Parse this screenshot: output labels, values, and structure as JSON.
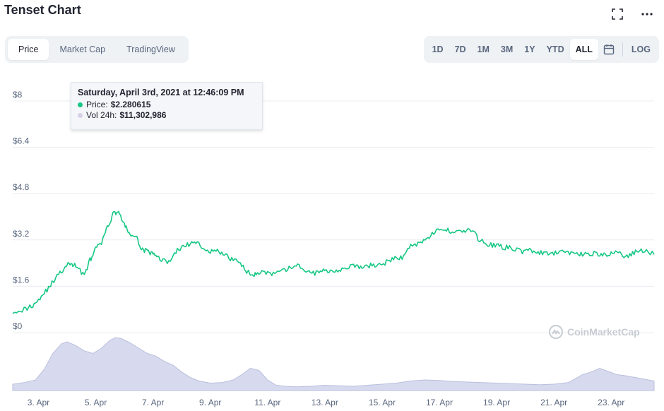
{
  "header": {
    "title": "Tenset Chart",
    "fullscreen_icon": "expand-icon",
    "more_icon": "more-dots-icon"
  },
  "metric_tabs": [
    {
      "label": "Price",
      "active": true
    },
    {
      "label": "Market Cap",
      "active": false
    },
    {
      "label": "TradingView",
      "active": false
    }
  ],
  "range_tabs": [
    {
      "label": "1D",
      "active": false
    },
    {
      "label": "7D",
      "active": false
    },
    {
      "label": "1M",
      "active": false
    },
    {
      "label": "3M",
      "active": false
    },
    {
      "label": "1Y",
      "active": false
    },
    {
      "label": "YTD",
      "active": false
    },
    {
      "label": "ALL",
      "active": true
    }
  ],
  "calendar_icon": "calendar-icon",
  "log_label": "LOG",
  "tooltip": {
    "title": "Saturday, April 3rd, 2021 at 12:46:09 PM",
    "price_label": "Price:",
    "price_value": "$2.280615",
    "vol_label": "Vol 24h:",
    "vol_value": "$11,302,986",
    "price_color": "#16c784",
    "vol_color": "#d9d0e6"
  },
  "watermark": "CoinMarketCap",
  "chart_data": {
    "type": "line",
    "price_color": "#16c784",
    "volume_color": "#c9cee8",
    "y_ticks": [
      "$8",
      "$6.4",
      "$4.8",
      "$3.2",
      "$1.6",
      "$0"
    ],
    "ylim": [
      0,
      8
    ],
    "x_ticks": [
      "3. Apr",
      "5. Apr",
      "7. Apr",
      "9. Apr",
      "11. Apr",
      "13. Apr",
      "15. Apr",
      "17. Apr",
      "19. Apr",
      "21. Apr",
      "23. Apr"
    ],
    "x_tick_days": [
      3,
      5,
      7,
      9,
      11,
      13,
      15,
      17,
      19,
      21,
      23
    ],
    "x_range_days": [
      2.1,
      24.5
    ],
    "grid": true,
    "series": [
      {
        "name": "Price",
        "x": [
          2.1,
          2.5,
          2.8,
          3.1,
          3.4,
          3.6,
          3.9,
          4.1,
          4.3,
          4.6,
          4.8,
          5.0,
          5.2,
          5.4,
          5.6,
          5.8,
          6.0,
          6.2,
          6.4,
          6.6,
          6.8,
          7.0,
          7.2,
          7.5,
          7.8,
          8.1,
          8.4,
          8.7,
          9.0,
          9.3,
          9.6,
          9.9,
          10.2,
          10.4,
          10.6,
          10.9,
          11.2,
          11.5,
          11.8,
          12.1,
          12.4,
          12.7,
          13.0,
          13.3,
          13.6,
          13.9,
          14.2,
          14.5,
          14.8,
          15.1,
          15.4,
          15.7,
          16.0,
          16.3,
          16.6,
          16.9,
          17.2,
          17.5,
          17.8,
          18.1,
          18.4,
          18.7,
          19.0,
          19.3,
          19.6,
          19.9,
          20.2,
          20.5,
          20.8,
          21.1,
          21.4,
          21.7,
          22.0,
          22.3,
          22.6,
          22.9,
          23.2,
          23.5,
          23.8,
          24.1,
          24.5
        ],
        "y": [
          0.75,
          0.8,
          0.95,
          1.25,
          1.6,
          1.9,
          2.2,
          2.4,
          2.3,
          2.0,
          2.5,
          2.9,
          3.1,
          3.6,
          4.1,
          4.2,
          3.7,
          3.4,
          3.3,
          2.9,
          2.8,
          2.7,
          2.6,
          2.4,
          2.8,
          3.0,
          3.1,
          3.0,
          2.8,
          2.8,
          2.6,
          2.5,
          2.2,
          2.0,
          2.05,
          2.1,
          2.0,
          2.1,
          2.25,
          2.3,
          2.1,
          2.05,
          2.15,
          2.15,
          2.2,
          2.3,
          2.25,
          2.3,
          2.35,
          2.4,
          2.55,
          2.6,
          3.0,
          3.1,
          3.3,
          3.5,
          3.55,
          3.5,
          3.5,
          3.55,
          3.2,
          3.05,
          3.0,
          2.95,
          2.9,
          2.8,
          2.85,
          2.75,
          2.7,
          2.75,
          2.8,
          2.75,
          2.7,
          2.75,
          2.7,
          2.65,
          2.85,
          2.6,
          2.75,
          2.85,
          2.7
        ]
      },
      {
        "name": "Vol 24h",
        "x": [
          2.1,
          2.5,
          2.9,
          3.2,
          3.5,
          3.8,
          4.0,
          4.3,
          4.6,
          4.9,
          5.2,
          5.5,
          5.7,
          5.9,
          6.2,
          6.5,
          6.8,
          7.1,
          7.4,
          7.7,
          8.0,
          8.3,
          8.6,
          9.0,
          9.4,
          9.8,
          10.1,
          10.4,
          10.7,
          11.0,
          11.3,
          11.6,
          12.0,
          12.5,
          13.0,
          13.5,
          14.0,
          14.5,
          15.0,
          15.5,
          16.0,
          16.5,
          17.0,
          17.5,
          18.0,
          18.5,
          19.0,
          19.5,
          20.0,
          20.5,
          21.0,
          21.5,
          22.0,
          22.3,
          22.6,
          22.9,
          23.2,
          23.5,
          23.8,
          24.1,
          24.5
        ],
        "y": [
          0.12,
          0.15,
          0.2,
          0.4,
          0.7,
          0.88,
          0.92,
          0.85,
          0.75,
          0.7,
          0.8,
          0.95,
          1.0,
          0.98,
          0.9,
          0.8,
          0.7,
          0.65,
          0.55,
          0.48,
          0.35,
          0.25,
          0.18,
          0.14,
          0.15,
          0.2,
          0.3,
          0.42,
          0.38,
          0.2,
          0.1,
          0.08,
          0.07,
          0.08,
          0.1,
          0.09,
          0.08,
          0.1,
          0.12,
          0.14,
          0.18,
          0.2,
          0.19,
          0.17,
          0.16,
          0.15,
          0.14,
          0.13,
          0.12,
          0.11,
          0.12,
          0.15,
          0.3,
          0.35,
          0.42,
          0.36,
          0.3,
          0.28,
          0.25,
          0.22,
          0.18
        ]
      }
    ]
  }
}
